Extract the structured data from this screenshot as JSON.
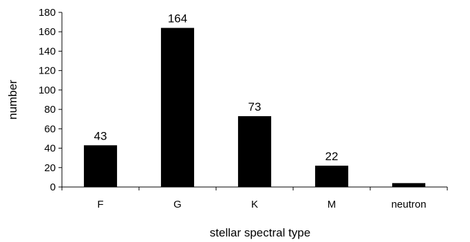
{
  "chart_data": {
    "type": "bar",
    "categories": [
      "F",
      "G",
      "K",
      "M",
      "neutron"
    ],
    "values": [
      43,
      164,
      73,
      22,
      4
    ],
    "data_labels": [
      "43",
      "164",
      "73",
      "22",
      ""
    ],
    "title": "",
    "xlabel": "stellar spectral type",
    "ylabel": "number",
    "ylim": [
      0,
      180
    ],
    "yticks": [
      0,
      20,
      40,
      60,
      80,
      100,
      120,
      140,
      160,
      180
    ],
    "grid": false,
    "legend": "none",
    "bar_color": "#000000"
  }
}
